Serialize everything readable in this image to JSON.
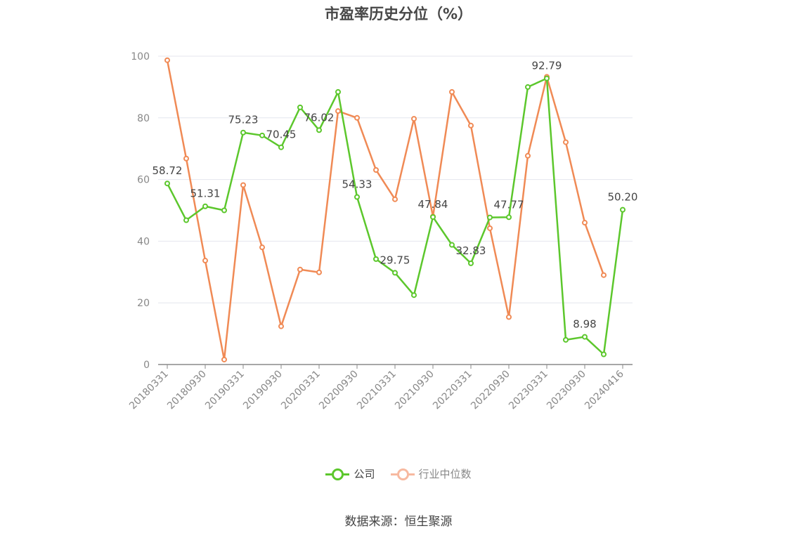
{
  "chart_data": {
    "type": "line",
    "title": "市盈率历史分位（%）",
    "x_tick_labels": [
      "20180331",
      "20180930",
      "20190331",
      "20190930",
      "20200331",
      "20200930",
      "20210331",
      "20210930",
      "20220331",
      "20220930",
      "20230331",
      "20230930",
      "20240416"
    ],
    "y_ticks": [
      0,
      20,
      40,
      60,
      80,
      100
    ],
    "ylim": [
      0,
      100
    ],
    "grid": true,
    "legend_position": "bottom",
    "series": [
      {
        "name": "公司",
        "color": "#5cc72c",
        "values": [
          58.72,
          46.8,
          51.31,
          50.0,
          75.23,
          74.3,
          70.45,
          83.4,
          76.02,
          88.4,
          54.33,
          34.2,
          29.75,
          22.5,
          47.84,
          38.8,
          32.83,
          47.7,
          47.77,
          90.0,
          92.79,
          8.0,
          8.98,
          3.3,
          50.2
        ],
        "labels": {
          "0": "58.72",
          "2": "51.31",
          "4": "75.23",
          "6": "70.45",
          "8": "76.02",
          "10": "54.33",
          "12": "29.75",
          "14": "47.84",
          "16": "32.83",
          "18": "47.77",
          "20": "92.79",
          "22": "8.98",
          "24": "50.20"
        }
      },
      {
        "name": "行业中位数",
        "color": "#f08a55",
        "values": [
          98.7,
          66.8,
          33.7,
          1.6,
          58.2,
          38.0,
          12.4,
          30.8,
          29.9,
          82.2,
          80.0,
          63.1,
          53.6,
          79.7,
          48.0,
          88.4,
          77.5,
          44.2,
          15.4,
          67.7,
          93.3,
          72.1,
          46.0,
          29.0,
          null
        ]
      }
    ],
    "source": "数据来源：恒生聚源"
  }
}
